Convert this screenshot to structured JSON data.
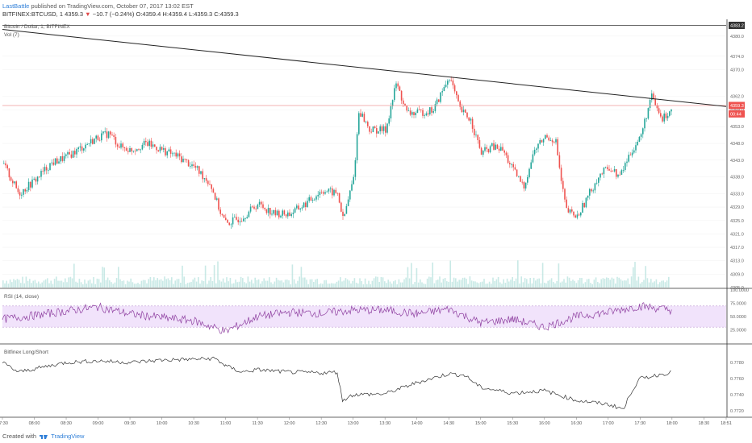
{
  "header": {
    "author": "LastBattle",
    "published_text": "published on TradingView.com, October 07, 2017 13:02 EST",
    "symbol": "BITFINEX:BTCUSD, 1",
    "last_price": "4359.3",
    "change": "−10.7 (−0.24%)",
    "ohlc": "O:4359.4 H:4359.4 L:4359.3 C:4359.3"
  },
  "footer": {
    "created_with": "Created with",
    "brand": "TradingView"
  },
  "colors": {
    "up": "#26a69a",
    "down": "#ef5350",
    "trendline": "#222222",
    "price_line": "#ef9a9a",
    "rsi_band": "#f1e3fb",
    "rsi_line": "#8e3fa0",
    "volume": "#b2dfdb"
  },
  "chart_data": [
    {
      "type": "candlestick",
      "title": "Bitcoin / Dollar, 1, BITFINEX",
      "volume_label": "Vol (7)",
      "ylim": [
        4305,
        4385
      ],
      "y_ticks": [
        "4380.0",
        "4374.0",
        "4370.0",
        "4362.0",
        "4358.0",
        "4353.0",
        "4348.0",
        "4343.0",
        "4338.0",
        "4333.0",
        "4329.0",
        "4325.0",
        "4321.0",
        "4317.0",
        "4313.0",
        "4309.0",
        "4305.0"
      ],
      "markers": [
        {
          "label": "4383.2",
          "value": 4383.2
        },
        {
          "label": "4359.3",
          "value": 4359.3
        },
        {
          "label": "00:44",
          "value": 4356.8
        }
      ],
      "x_range": [
        "07:30",
        "18:51"
      ],
      "x_ticks": [
        "07:30",
        "08:00",
        "08:30",
        "09:00",
        "09:30",
        "10:00",
        "10:30",
        "11:00",
        "11:30",
        "12:00",
        "12:30",
        "13:00",
        "13:30",
        "14:00",
        "14:30",
        "15:00",
        "15:30",
        "16:00",
        "16:30",
        "17:00",
        "17:30",
        "18:00",
        "18:30",
        "18:51"
      ],
      "path_points": [
        {
          "x": "07:30",
          "y": 4342
        },
        {
          "x": "07:45",
          "y": 4333
        },
        {
          "x": "08:00",
          "y": 4337
        },
        {
          "x": "08:15",
          "y": 4342
        },
        {
          "x": "08:30",
          "y": 4344
        },
        {
          "x": "08:45",
          "y": 4347
        },
        {
          "x": "09:00",
          "y": 4350
        },
        {
          "x": "09:10",
          "y": 4351
        },
        {
          "x": "09:20",
          "y": 4347
        },
        {
          "x": "09:30",
          "y": 4346
        },
        {
          "x": "09:45",
          "y": 4348
        },
        {
          "x": "10:00",
          "y": 4346
        },
        {
          "x": "10:15",
          "y": 4344
        },
        {
          "x": "10:30",
          "y": 4341
        },
        {
          "x": "10:45",
          "y": 4336
        },
        {
          "x": "10:55",
          "y": 4327
        },
        {
          "x": "11:00",
          "y": 4324
        },
        {
          "x": "11:15",
          "y": 4326
        },
        {
          "x": "11:30",
          "y": 4330
        },
        {
          "x": "11:45",
          "y": 4327
        },
        {
          "x": "12:00",
          "y": 4327
        },
        {
          "x": "12:15",
          "y": 4330
        },
        {
          "x": "12:30",
          "y": 4334
        },
        {
          "x": "12:45",
          "y": 4333
        },
        {
          "x": "12:50",
          "y": 4325
        },
        {
          "x": "13:00",
          "y": 4338
        },
        {
          "x": "13:05",
          "y": 4358
        },
        {
          "x": "13:15",
          "y": 4352
        },
        {
          "x": "13:30",
          "y": 4352
        },
        {
          "x": "13:40",
          "y": 4366
        },
        {
          "x": "13:50",
          "y": 4357
        },
        {
          "x": "14:00",
          "y": 4357
        },
        {
          "x": "14:15",
          "y": 4358
        },
        {
          "x": "14:30",
          "y": 4368
        },
        {
          "x": "14:40",
          "y": 4358
        },
        {
          "x": "14:50",
          "y": 4355
        },
        {
          "x": "15:00",
          "y": 4345
        },
        {
          "x": "15:10",
          "y": 4347
        },
        {
          "x": "15:20",
          "y": 4346
        },
        {
          "x": "15:30",
          "y": 4340
        },
        {
          "x": "15:40",
          "y": 4335
        },
        {
          "x": "15:50",
          "y": 4346
        },
        {
          "x": "16:00",
          "y": 4350
        },
        {
          "x": "16:10",
          "y": 4349
        },
        {
          "x": "16:15",
          "y": 4337
        },
        {
          "x": "16:20",
          "y": 4328
        },
        {
          "x": "16:30",
          "y": 4326
        },
        {
          "x": "16:40",
          "y": 4332
        },
        {
          "x": "16:50",
          "y": 4338
        },
        {
          "x": "17:00",
          "y": 4341
        },
        {
          "x": "17:10",
          "y": 4338
        },
        {
          "x": "17:20",
          "y": 4345
        },
        {
          "x": "17:30",
          "y": 4350
        },
        {
          "x": "17:40",
          "y": 4362
        },
        {
          "x": "17:50",
          "y": 4355
        },
        {
          "x": "18:00",
          "y": 4359
        }
      ],
      "trendline": [
        {
          "x": "07:30",
          "y": 4382
        },
        {
          "x": "18:51",
          "y": 4359
        }
      ],
      "horizontal_lines": [
        4383.2,
        4359.3
      ]
    },
    {
      "type": "line",
      "title": "RSI (14, close)",
      "ylim": [
        0,
        100
      ],
      "y_ticks": [
        "100.0000",
        "75.0000",
        "50.0000",
        "25.0000"
      ],
      "band": [
        30,
        70
      ],
      "x": [
        "07:30",
        "08:00",
        "08:30",
        "09:00",
        "09:30",
        "10:00",
        "10:30",
        "11:00",
        "11:30",
        "12:00",
        "12:30",
        "13:00",
        "13:30",
        "14:00",
        "14:30",
        "15:00",
        "15:30",
        "16:00",
        "16:30",
        "17:00",
        "17:30",
        "18:00"
      ],
      "values": [
        45,
        52,
        60,
        68,
        55,
        48,
        42,
        22,
        50,
        58,
        56,
        62,
        62,
        55,
        64,
        38,
        45,
        30,
        50,
        58,
        70,
        62
      ]
    },
    {
      "type": "line",
      "title": "Bitfinex Long/Short",
      "ylim": [
        0.7715,
        0.7795
      ],
      "y_ticks": [
        "0.7780",
        "0.7760",
        "0.7740",
        "0.7720"
      ],
      "x": [
        "07:30",
        "07:45",
        "08:00",
        "08:30",
        "09:00",
        "09:30",
        "10:00",
        "10:30",
        "10:50",
        "11:00",
        "11:15",
        "11:30",
        "12:00",
        "12:30",
        "12:45",
        "12:50",
        "13:00",
        "13:30",
        "14:00",
        "14:30",
        "14:45",
        "15:00",
        "15:30",
        "16:00",
        "16:30",
        "17:00",
        "17:15",
        "17:20",
        "17:30",
        "18:00"
      ],
      "values": [
        0.778,
        0.7768,
        0.7772,
        0.778,
        0.7782,
        0.778,
        0.7783,
        0.7784,
        0.7785,
        0.7776,
        0.7768,
        0.7771,
        0.7768,
        0.7767,
        0.7768,
        0.7733,
        0.774,
        0.7741,
        0.7755,
        0.7766,
        0.7764,
        0.7749,
        0.7742,
        0.7745,
        0.7733,
        0.7728,
        0.7722,
        0.774,
        0.776,
        0.7768
      ]
    }
  ]
}
